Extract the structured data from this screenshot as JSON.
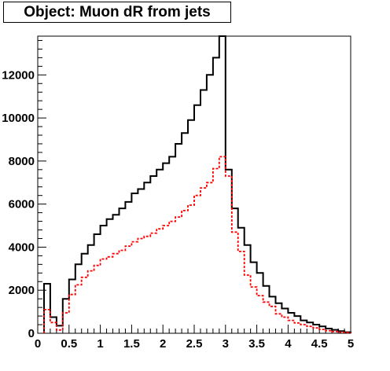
{
  "chart_data": {
    "type": "histogram",
    "title": "Object: Muon dR from jets",
    "xlabel": "",
    "ylabel": "",
    "xlim": [
      0,
      5
    ],
    "ylim": [
      0,
      13800
    ],
    "grid": false,
    "legend": "none",
    "bin_width": 0.1,
    "x_ticks": [
      "0",
      "0.5",
      "1",
      "1.5",
      "2",
      "2.5",
      "3",
      "3.5",
      "4",
      "4.5",
      "5"
    ],
    "y_ticks": [
      "0",
      "2000",
      "4000",
      "6000",
      "8000",
      "10000",
      "12000"
    ],
    "series": [
      {
        "color": "#000000",
        "style": "solid",
        "bin_lows": [
          0.1,
          0.2,
          0.3,
          0.4,
          0.5,
          0.6,
          0.7,
          0.8,
          0.9,
          1.0,
          1.1,
          1.2,
          1.3,
          1.4,
          1.5,
          1.6,
          1.7,
          1.8,
          1.9,
          2.0,
          2.1,
          2.2,
          2.3,
          2.4,
          2.5,
          2.6,
          2.7,
          2.8,
          2.9,
          3.0,
          3.1,
          3.2,
          3.3,
          3.4,
          3.5,
          3.6,
          3.7,
          3.8,
          3.9,
          4.0,
          4.1,
          4.2,
          4.3,
          4.4,
          4.5,
          4.6,
          4.7,
          4.8,
          4.9
        ],
        "values": [
          2300,
          750,
          350,
          1600,
          2500,
          3200,
          3700,
          4100,
          4600,
          5000,
          5300,
          5500,
          5800,
          6100,
          6500,
          6700,
          7000,
          7300,
          7600,
          7900,
          8200,
          8800,
          9300,
          9900,
          10600,
          11300,
          12000,
          12800,
          13800,
          7600,
          5800,
          4900,
          4100,
          3300,
          2800,
          2200,
          1700,
          1400,
          1150,
          950,
          800,
          600,
          500,
          400,
          320,
          220,
          160,
          100,
          50
        ]
      },
      {
        "color": "#ff0000",
        "style": "dashed",
        "bin_lows": [
          0.1,
          0.2,
          0.3,
          0.4,
          0.5,
          0.6,
          0.7,
          0.8,
          0.9,
          1.0,
          1.1,
          1.2,
          1.3,
          1.4,
          1.5,
          1.6,
          1.7,
          1.8,
          1.9,
          2.0,
          2.1,
          2.2,
          2.3,
          2.4,
          2.5,
          2.6,
          2.7,
          2.8,
          2.9,
          3.0,
          3.1,
          3.2,
          3.3,
          3.4,
          3.5,
          3.6,
          3.7,
          3.8,
          3.9,
          4.0,
          4.1,
          4.2,
          4.3,
          4.4,
          4.5,
          4.6,
          4.7,
          4.8,
          4.9
        ],
        "values": [
          1100,
          500,
          150,
          950,
          1800,
          2250,
          2600,
          2900,
          3150,
          3450,
          3550,
          3700,
          3850,
          4050,
          4250,
          4400,
          4500,
          4650,
          4850,
          5000,
          5200,
          5400,
          5700,
          5950,
          6400,
          6750,
          7000,
          7650,
          8200,
          7300,
          4700,
          3800,
          2700,
          2150,
          1750,
          1450,
          1250,
          900,
          750,
          600,
          480,
          400,
          320,
          250,
          180,
          120,
          80,
          50,
          30
        ]
      }
    ]
  }
}
